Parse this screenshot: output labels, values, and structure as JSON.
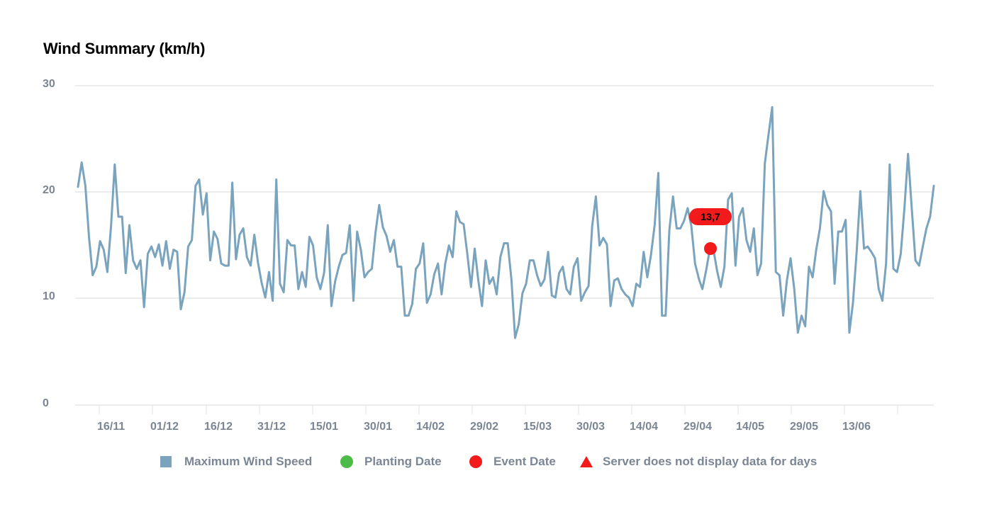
{
  "chart_data": {
    "type": "line",
    "title": "Wind Summary (km/h)",
    "xlabel": "",
    "ylabel": "",
    "ylim": [
      0,
      30
    ],
    "yticks": [
      0,
      10,
      20,
      30
    ],
    "grid": true,
    "legend_position": "bottom",
    "x_tick_labels": [
      "16/11",
      "01/12",
      "16/12",
      "31/12",
      "15/01",
      "30/01",
      "14/02",
      "29/02",
      "15/03",
      "30/03",
      "14/04",
      "29/04",
      "14/05",
      "29/05",
      "13/06"
    ],
    "series": [
      {
        "name": "Maximum Wind Speed",
        "color": "#7aa4bd",
        "values": [
          20.5,
          22.8,
          20.6,
          15.8,
          12.2,
          13.0,
          15.4,
          14.6,
          12.5,
          16.8,
          22.6,
          17.7,
          17.7,
          12.4,
          16.9,
          13.6,
          12.8,
          13.6,
          9.2,
          14.2,
          14.9,
          13.9,
          15.1,
          13.1,
          15.4,
          12.8,
          14.6,
          14.4,
          9.0,
          10.6,
          14.9,
          15.5,
          20.6,
          21.2,
          17.9,
          19.9,
          13.6,
          16.3,
          15.6,
          13.3,
          13.1,
          13.1,
          20.9,
          13.7,
          16.0,
          16.6,
          13.9,
          13.1,
          16.0,
          13.4,
          11.5,
          10.1,
          12.5,
          9.8,
          21.2,
          11.4,
          10.6,
          15.5,
          15.0,
          15.0,
          10.9,
          12.5,
          11.1,
          15.8,
          15.0,
          12.0,
          10.9,
          12.4,
          16.9,
          9.3,
          11.6,
          13.0,
          14.1,
          14.3,
          16.9,
          9.8,
          16.3,
          14.6,
          12.0,
          12.5,
          12.8,
          16.2,
          18.8,
          16.7,
          15.9,
          14.4,
          15.5,
          13.0,
          13.0,
          8.4,
          8.4,
          9.5,
          12.8,
          13.3,
          15.2,
          9.6,
          10.4,
          12.3,
          13.3,
          10.4,
          13.3,
          15.0,
          13.9,
          18.2,
          17.2,
          17.0,
          14.2,
          11.1,
          14.7,
          11.7,
          9.3,
          13.6,
          11.4,
          12.0,
          10.4,
          13.9,
          15.2,
          15.2,
          11.8,
          6.3,
          7.6,
          10.5,
          11.4,
          13.6,
          13.6,
          12.2,
          11.2,
          11.8,
          14.4,
          10.3,
          10.1,
          12.4,
          13.0,
          10.9,
          10.4,
          13.0,
          13.8,
          9.8,
          10.6,
          11.2,
          16.8,
          19.6,
          15.0,
          15.7,
          15.1,
          9.3,
          11.7,
          11.9,
          10.9,
          10.4,
          10.1,
          9.3,
          11.4,
          11.1,
          14.4,
          12.0,
          14.1,
          16.9,
          21.8,
          8.4,
          8.4,
          16.4,
          19.6,
          16.6,
          16.6,
          17.3,
          18.5,
          16.8,
          13.3,
          11.9,
          10.9,
          12.6,
          14.6,
          14.6,
          12.6,
          11.1,
          13.0,
          19.3,
          19.9,
          13.1,
          17.7,
          18.5,
          15.5,
          14.4,
          16.6,
          12.2,
          13.3,
          22.7,
          25.4,
          28.0,
          12.5,
          12.2,
          8.4,
          11.7,
          13.8,
          10.9,
          6.8,
          8.4,
          7.4,
          13.0,
          12.0,
          14.6,
          16.6,
          20.1,
          18.8,
          18.2,
          11.4,
          16.3,
          16.3,
          17.4,
          6.8,
          9.6,
          14.4,
          20.1,
          14.7,
          14.9,
          14.4,
          13.8,
          10.9,
          9.8,
          13.3,
          22.6,
          12.8,
          12.5,
          14.2,
          18.5,
          23.6,
          18.5,
          13.6,
          13.1,
          14.9,
          16.6,
          17.7,
          20.6
        ]
      }
    ],
    "annotations": [
      {
        "type": "event-marker",
        "x_label": "~05/05",
        "value": 14.6,
        "color": "#f21a1a",
        "badge_text": "13,7"
      }
    ],
    "legend": [
      {
        "label": "Maximum Wind Speed",
        "shape": "square",
        "color": "#7aa4bd"
      },
      {
        "label": "Planting Date",
        "shape": "circle",
        "color": "#4cbb47"
      },
      {
        "label": "Event Date",
        "shape": "circle",
        "color": "#f21a1a"
      },
      {
        "label": "Server does not display data for days",
        "shape": "triangle",
        "color": "#f21a1a"
      }
    ]
  },
  "title": "Wind Summary (km/h)",
  "y_axis": {
    "labels": [
      "30",
      "20",
      "10",
      "0"
    ]
  },
  "x_axis": {
    "labels": [
      "16/11",
      "01/12",
      "16/12",
      "31/12",
      "15/01",
      "30/01",
      "14/02",
      "29/02",
      "15/03",
      "30/03",
      "14/04",
      "29/04",
      "14/05",
      "29/05",
      "13/06"
    ]
  },
  "event_badge": {
    "text": "13,7"
  },
  "legend": {
    "items": [
      {
        "label": "Maximum Wind Speed"
      },
      {
        "label": "Planting Date"
      },
      {
        "label": "Event Date"
      },
      {
        "label": "Server does not display data for days"
      }
    ]
  }
}
